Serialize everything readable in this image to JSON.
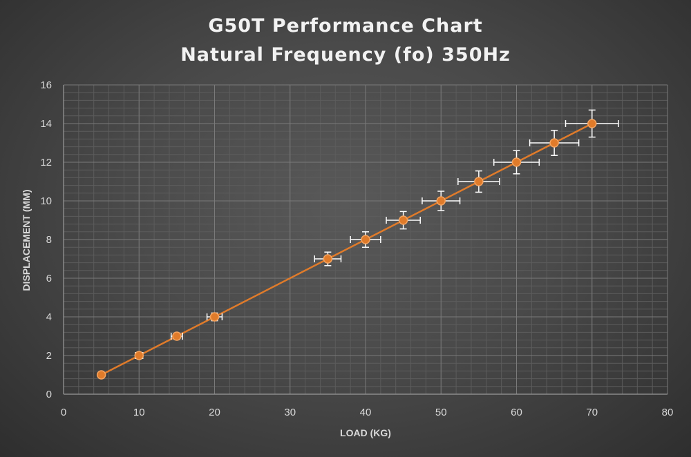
{
  "chart_data": {
    "type": "scatter",
    "title": "G50T Performance Chart",
    "subtitle": "Natural Frequency (fo) 350Hz",
    "xlabel": "LOAD (KG)",
    "ylabel": "DISPLACEMENT (MM)",
    "xlim": [
      0,
      80
    ],
    "ylim": [
      0,
      16
    ],
    "xticks": [
      0,
      10,
      20,
      30,
      40,
      50,
      60,
      70,
      80
    ],
    "yticks": [
      0,
      2,
      4,
      6,
      8,
      10,
      12,
      14,
      16
    ],
    "major_grid": true,
    "minor_grid": true,
    "line_connected": true,
    "colors": {
      "series": "#e07b2a",
      "marker_edge": "#f4a460",
      "error_bar": "#ffffff",
      "grid_major": "#7a7a7a",
      "grid_minor": "#5c5c5c"
    },
    "series": [
      {
        "x": [
          5,
          10,
          15,
          20,
          35,
          40,
          45,
          50,
          55,
          60,
          65,
          70
        ],
        "y": [
          1,
          2,
          3,
          4,
          7,
          8,
          9,
          10,
          11,
          12,
          13,
          14
        ],
        "x_error": [
          0.25,
          0.5,
          0.75,
          1.0,
          1.75,
          2.0,
          2.25,
          2.5,
          2.75,
          3.0,
          3.25,
          3.5
        ],
        "y_error": [
          0.05,
          0.1,
          0.15,
          0.2,
          0.35,
          0.4,
          0.45,
          0.5,
          0.55,
          0.6,
          0.65,
          0.7
        ]
      }
    ]
  }
}
